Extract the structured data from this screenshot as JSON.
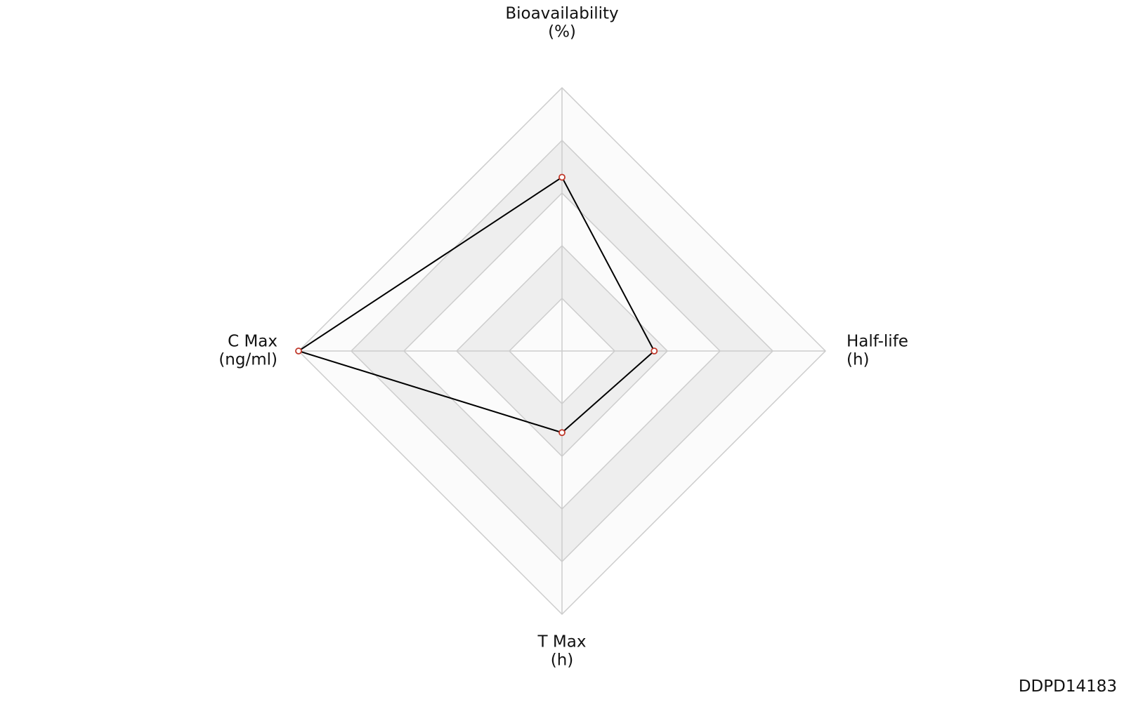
{
  "chart_data": {
    "type": "radar",
    "categories": [
      [
        "Bioavailability",
        "(%)"
      ],
      [
        "Half-life",
        "(h)"
      ],
      [
        "T Max",
        "(h)"
      ],
      [
        "C Max",
        "(ng/ml)"
      ]
    ],
    "values": [
      0.66,
      0.35,
      0.31,
      1.0
    ],
    "ylim": [
      0,
      1
    ],
    "yticks": [
      0.2,
      0.4,
      0.6,
      0.8,
      1.0
    ],
    "line_color": "#000000",
    "marker_color": "#c0392b",
    "grid": true,
    "watermark": "DDPD14183"
  }
}
